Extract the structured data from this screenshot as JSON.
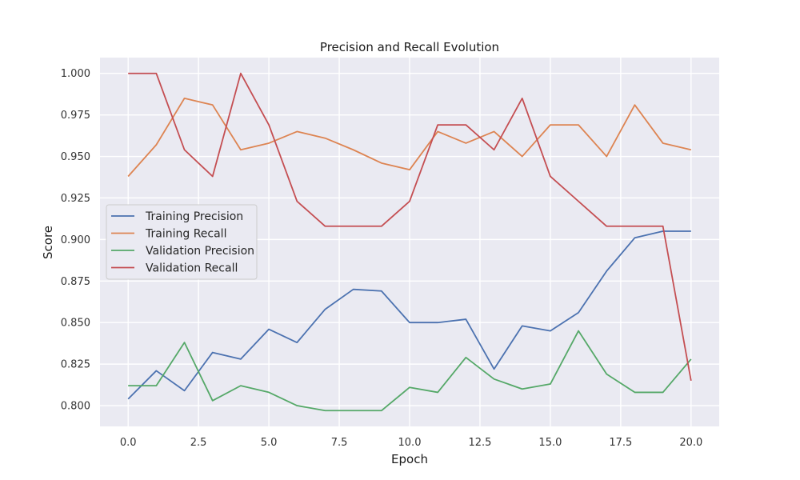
{
  "chart_data": {
    "type": "line",
    "title": "Precision and Recall Evolution",
    "xlabel": "Epoch",
    "ylabel": "Score",
    "xlim": [
      -1.0,
      21.0
    ],
    "ylim": [
      0.7875,
      1.0095
    ],
    "xticks": [
      0.0,
      2.5,
      5.0,
      7.5,
      10.0,
      12.5,
      15.0,
      17.5,
      20.0
    ],
    "xtick_labels": [
      "0.0",
      "2.5",
      "5.0",
      "7.5",
      "10.0",
      "12.5",
      "15.0",
      "17.5",
      "20.0"
    ],
    "yticks": [
      0.8,
      0.825,
      0.85,
      0.875,
      0.9,
      0.925,
      0.95,
      0.975,
      1.0
    ],
    "ytick_labels": [
      "0.800",
      "0.825",
      "0.850",
      "0.875",
      "0.900",
      "0.925",
      "0.950",
      "0.975",
      "1.000"
    ],
    "grid": true,
    "legend_position": "center-left",
    "x": [
      0,
      1,
      2,
      3,
      4,
      5,
      6,
      7,
      8,
      9,
      10,
      11,
      12,
      13,
      14,
      15,
      16,
      17,
      18,
      19,
      20
    ],
    "series": [
      {
        "name": "Training Precision",
        "color": "#4c72b0",
        "values": [
          0.804,
          0.821,
          0.809,
          0.832,
          0.828,
          0.846,
          0.838,
          0.858,
          0.87,
          0.869,
          0.85,
          0.85,
          0.852,
          0.822,
          0.848,
          0.845,
          0.856,
          0.881,
          0.901,
          0.905,
          0.905
        ]
      },
      {
        "name": "Training Recall",
        "color": "#dd8452",
        "values": [
          0.938,
          0.957,
          0.985,
          0.981,
          0.954,
          0.958,
          0.965,
          0.961,
          0.954,
          0.946,
          0.942,
          0.965,
          0.958,
          0.965,
          0.95,
          0.969,
          0.969,
          0.95,
          0.981,
          0.958,
          0.954
        ]
      },
      {
        "name": "Validation Precision",
        "color": "#55a868",
        "values": [
          0.812,
          0.812,
          0.838,
          0.803,
          0.812,
          0.808,
          0.8,
          0.797,
          0.797,
          0.797,
          0.811,
          0.808,
          0.829,
          0.816,
          0.81,
          0.813,
          0.845,
          0.819,
          0.808,
          0.808,
          0.828
        ]
      },
      {
        "name": "Validation Recall",
        "color": "#c44e52",
        "values": [
          1.0,
          1.0,
          0.954,
          0.938,
          1.0,
          0.969,
          0.923,
          0.908,
          0.908,
          0.908,
          0.923,
          0.969,
          0.969,
          0.954,
          0.985,
          0.938,
          0.923,
          0.908,
          0.908,
          0.908,
          0.815
        ]
      }
    ]
  }
}
